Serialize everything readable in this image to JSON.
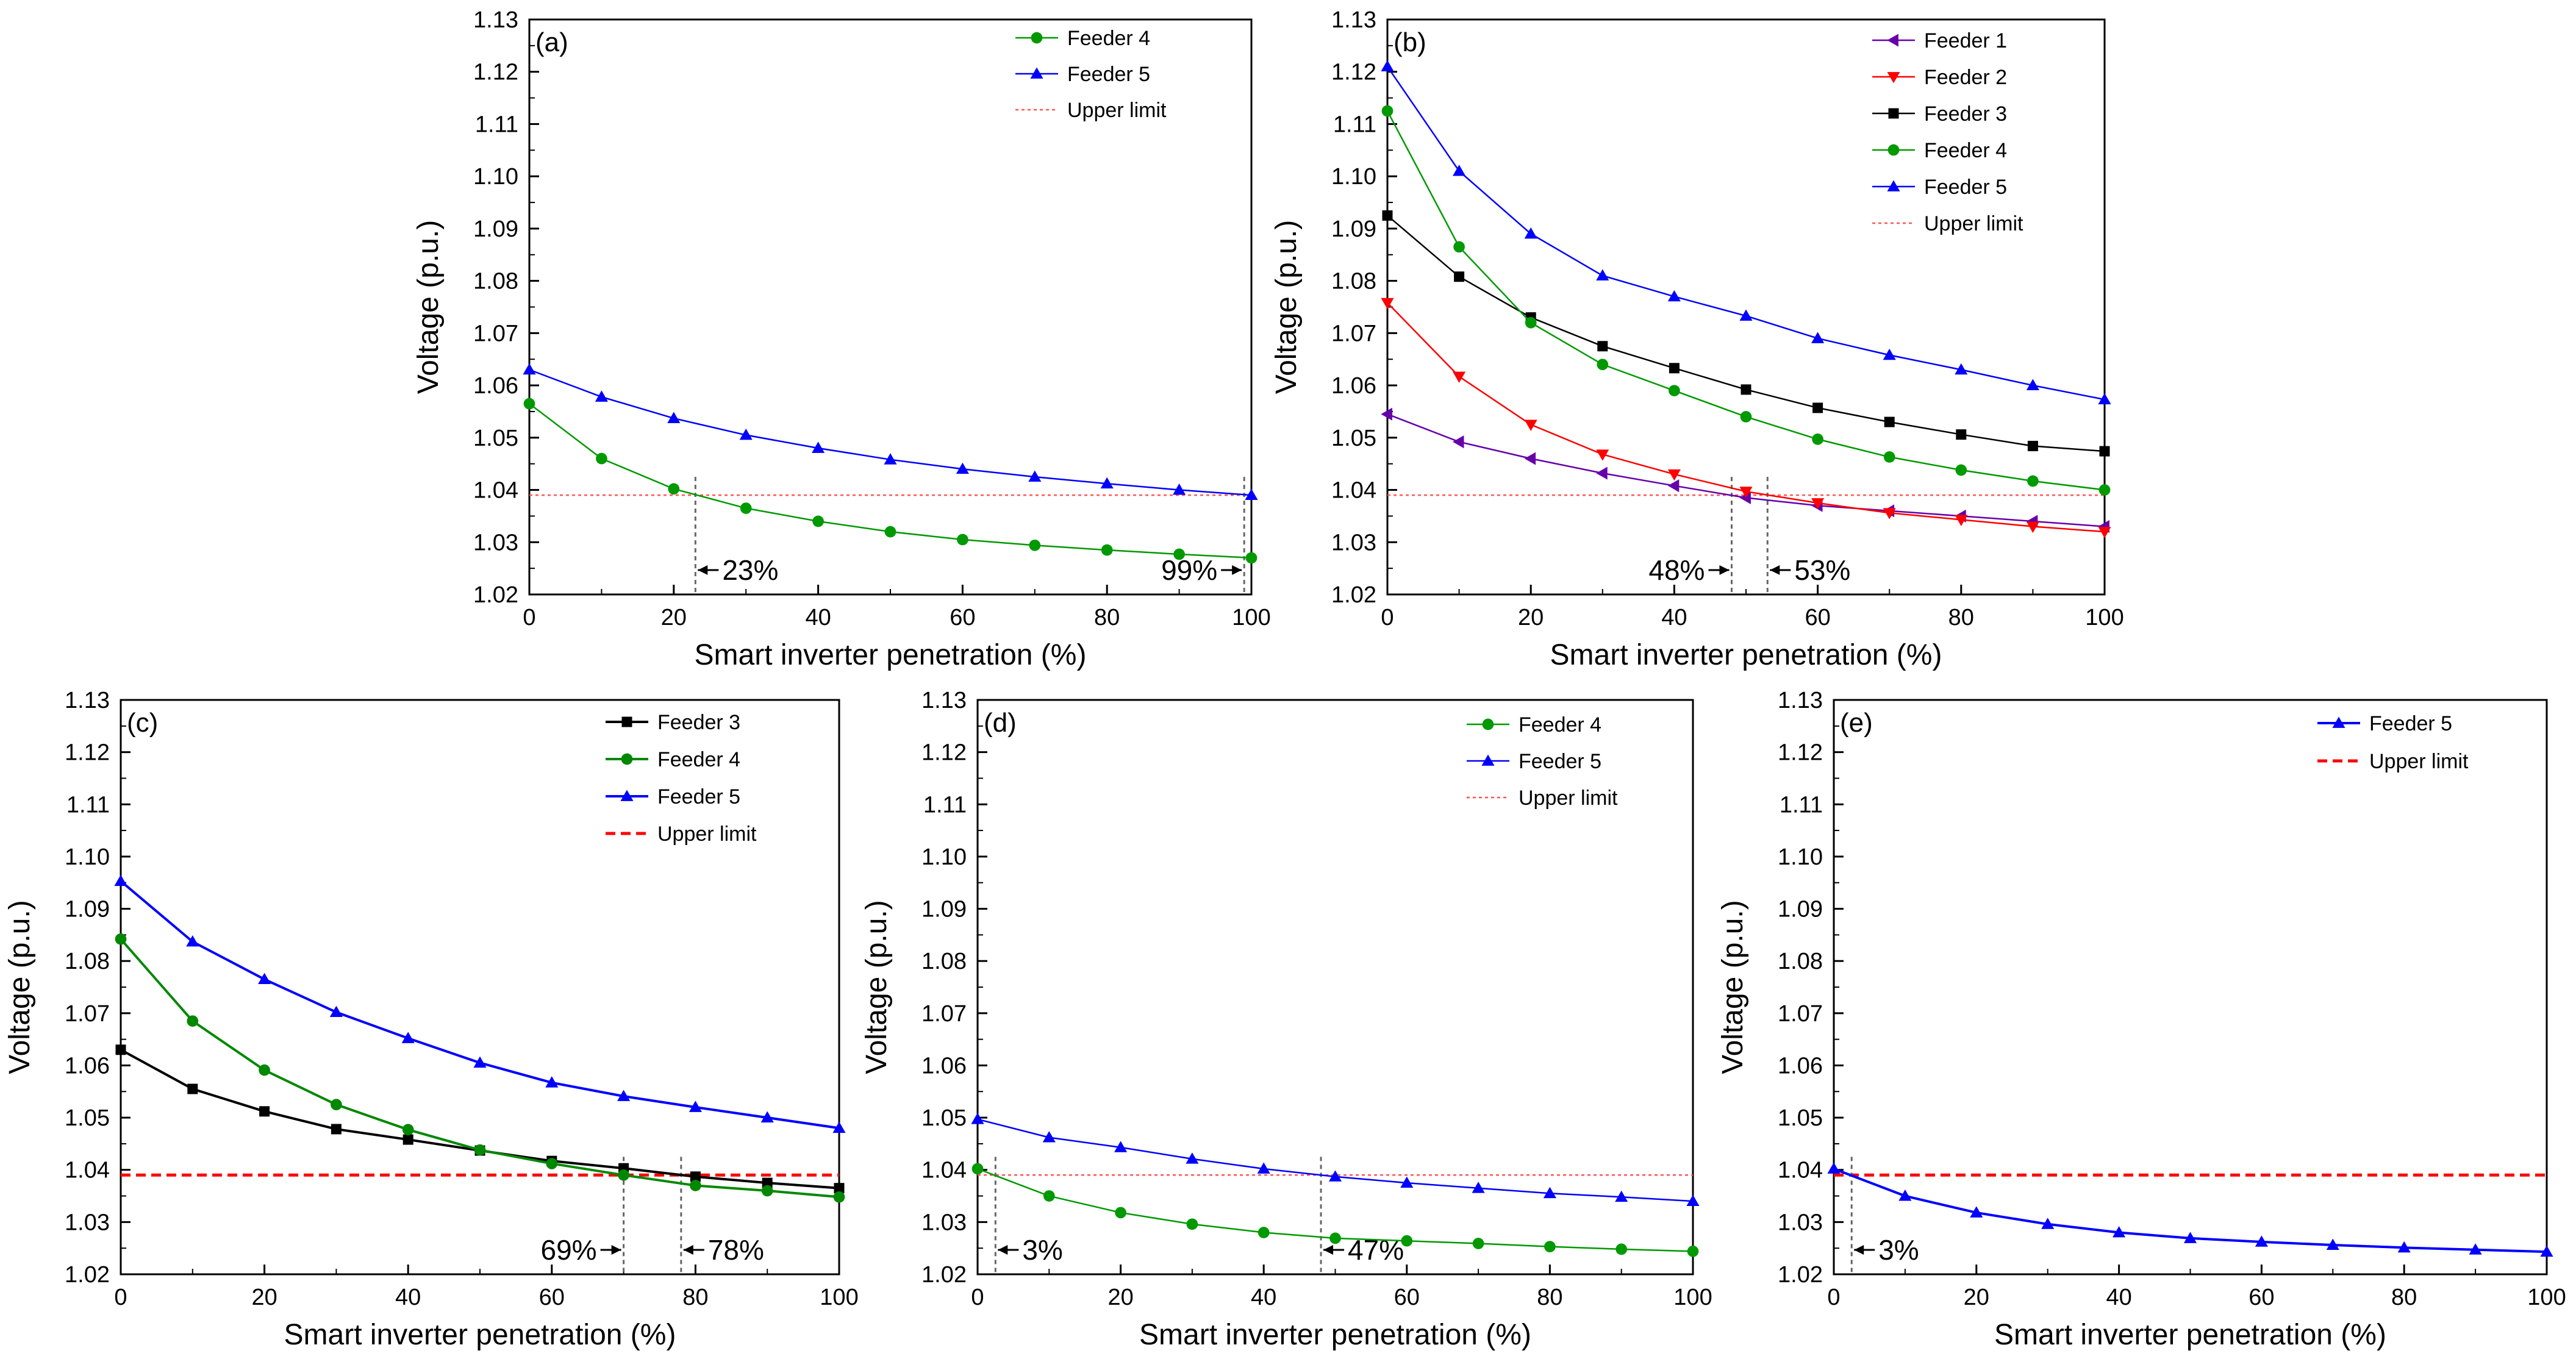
{
  "chart_data": [
    {
      "panel": "(a)",
      "type": "line",
      "xlabel": "Smart inverter penetration (%)",
      "ylabel": "Voltage (p.u.)",
      "xlim": [
        0,
        100
      ],
      "ylim": [
        1.02,
        1.13
      ],
      "xticks": [
        "0",
        "20",
        "40",
        "60",
        "80",
        "100"
      ],
      "yticks": [
        "1.02",
        "1.03",
        "1.04",
        "1.05",
        "1.06",
        "1.07",
        "1.08",
        "1.09",
        "1.10",
        "1.11",
        "1.12",
        "1.13"
      ],
      "x": [
        0,
        10,
        20,
        30,
        40,
        50,
        60,
        70,
        80,
        90,
        100
      ],
      "legend_position": "top-right",
      "series": [
        {
          "name": "Feeder 4",
          "color": "#009900",
          "marker": "circle",
          "values": [
            1.0565,
            1.046,
            1.0402,
            1.0365,
            1.034,
            1.032,
            1.0305,
            1.0294,
            1.0285,
            1.0277,
            1.027
          ]
        },
        {
          "name": "Feeder 5",
          "color": "#0000ff",
          "marker": "triangle-up",
          "values": [
            1.063,
            1.0578,
            1.0537,
            1.0505,
            1.048,
            1.0458,
            1.044,
            1.0425,
            1.0412,
            1.04,
            1.039
          ]
        }
      ],
      "upper_limit": {
        "name": "Upper limit",
        "value": 1.039,
        "color": "#ff5555",
        "style": "dotted"
      },
      "annotations": [
        {
          "text": "23%",
          "x": 23,
          "side": "right"
        },
        {
          "text": "99%",
          "x": 99,
          "side": "left"
        }
      ]
    },
    {
      "panel": "(b)",
      "type": "line",
      "xlabel": "Smart inverter penetration (%)",
      "ylabel": "Voltage (p.u.)",
      "xlim": [
        0,
        100
      ],
      "ylim": [
        1.02,
        1.13
      ],
      "xticks": [
        "0",
        "20",
        "40",
        "60",
        "80",
        "100"
      ],
      "yticks": [
        "1.02",
        "1.03",
        "1.04",
        "1.05",
        "1.06",
        "1.07",
        "1.08",
        "1.09",
        "1.10",
        "1.11",
        "1.12",
        "1.13"
      ],
      "x": [
        0,
        10,
        20,
        30,
        40,
        50,
        60,
        70,
        80,
        90,
        100
      ],
      "legend_position": "top-right",
      "series": [
        {
          "name": "Feeder 1",
          "color": "#6600aa",
          "marker": "triangle-left",
          "values": [
            1.0545,
            1.0492,
            1.046,
            1.0432,
            1.0408,
            1.0385,
            1.037,
            1.036,
            1.035,
            1.034,
            1.033
          ]
        },
        {
          "name": "Feeder 2",
          "color": "#ff0000",
          "marker": "triangle-down",
          "values": [
            1.0758,
            1.0617,
            1.0525,
            1.0468,
            1.043,
            1.0397,
            1.0375,
            1.0356,
            1.0343,
            1.033,
            1.032
          ]
        },
        {
          "name": "Feeder 3",
          "color": "#000000",
          "marker": "square",
          "values": [
            1.0925,
            1.0808,
            1.073,
            1.0675,
            1.0633,
            1.0592,
            1.0557,
            1.053,
            1.0506,
            1.0484,
            1.0474
          ]
        },
        {
          "name": "Feeder 4",
          "color": "#009900",
          "marker": "circle",
          "values": [
            1.1125,
            1.0865,
            1.072,
            1.064,
            1.059,
            1.054,
            1.0497,
            1.0463,
            1.0438,
            1.0417,
            1.04
          ]
        },
        {
          "name": "Feeder 5",
          "color": "#0000ff",
          "marker": "triangle-up",
          "values": [
            1.121,
            1.101,
            1.089,
            1.081,
            1.077,
            1.0733,
            1.069,
            1.0658,
            1.063,
            1.06,
            1.0573
          ]
        }
      ],
      "upper_limit": {
        "name": "Upper limit",
        "value": 1.039,
        "color": "#ff5555",
        "style": "dotted"
      },
      "annotations": [
        {
          "text": "48%",
          "x": 48,
          "side": "left"
        },
        {
          "text": "53%",
          "x": 53,
          "side": "right"
        }
      ]
    },
    {
      "panel": "(c)",
      "type": "line",
      "xlabel": "Smart inverter penetration (%)",
      "ylabel": "Voltage (p.u.)",
      "xlim": [
        0,
        100
      ],
      "ylim": [
        1.02,
        1.13
      ],
      "xticks": [
        "0",
        "20",
        "40",
        "60",
        "80",
        "100"
      ],
      "yticks": [
        "1.02",
        "1.03",
        "1.04",
        "1.05",
        "1.06",
        "1.07",
        "1.08",
        "1.09",
        "1.10",
        "1.11",
        "1.12",
        "1.13"
      ],
      "x": [
        0,
        10,
        20,
        30,
        40,
        50,
        60,
        70,
        80,
        90,
        100
      ],
      "legend_position": "top-right",
      "series": [
        {
          "name": "Feeder 3",
          "color": "#000000",
          "marker": "square",
          "values": [
            1.063,
            1.0555,
            1.0512,
            1.0478,
            1.0458,
            1.0437,
            1.0417,
            1.0403,
            1.0387,
            1.0375,
            1.0365
          ]
        },
        {
          "name": "Feeder 4",
          "color": "#008800",
          "marker": "circle",
          "values": [
            1.0842,
            1.0685,
            1.0591,
            1.0525,
            1.0477,
            1.0438,
            1.0412,
            1.039,
            1.037,
            1.036,
            1.0348
          ]
        },
        {
          "name": "Feeder 5",
          "color": "#0000ff",
          "marker": "triangle-up",
          "values": [
            1.0953,
            1.0837,
            1.0765,
            1.0702,
            1.0652,
            1.0605,
            1.0567,
            1.0541,
            1.052,
            1.05,
            1.048
          ]
        }
      ],
      "upper_limit": {
        "name": "Upper limit",
        "value": 1.039,
        "color": "#ff0000",
        "style": "dashed"
      },
      "annotations": [
        {
          "text": "69%",
          "x": 70,
          "side": "left"
        },
        {
          "text": "78%",
          "x": 78,
          "side": "right"
        }
      ]
    },
    {
      "panel": "(d)",
      "type": "line",
      "xlabel": "Smart inverter penetration (%)",
      "ylabel": "Voltage (p.u.)",
      "xlim": [
        0,
        100
      ],
      "ylim": [
        1.02,
        1.13
      ],
      "xticks": [
        "0",
        "20",
        "40",
        "60",
        "80",
        "100"
      ],
      "yticks": [
        "1.02",
        "1.03",
        "1.04",
        "1.05",
        "1.06",
        "1.07",
        "1.08",
        "1.09",
        "1.10",
        "1.11",
        "1.12",
        "1.13"
      ],
      "x": [
        0,
        10,
        20,
        30,
        40,
        50,
        60,
        70,
        80,
        90,
        100
      ],
      "legend_position": "top-right",
      "series": [
        {
          "name": "Feeder 4",
          "color": "#009900",
          "marker": "circle",
          "values": [
            1.0402,
            1.035,
            1.0318,
            1.0296,
            1.028,
            1.0269,
            1.0264,
            1.0259,
            1.0253,
            1.0248,
            1.0244
          ]
        },
        {
          "name": "Feeder 5",
          "color": "#0000ff",
          "marker": "triangle-up",
          "values": [
            1.0497,
            1.0462,
            1.0443,
            1.0421,
            1.0402,
            1.0387,
            1.0375,
            1.0365,
            1.0355,
            1.0348,
            1.034
          ]
        }
      ],
      "upper_limit": {
        "name": "Upper limit",
        "value": 1.039,
        "color": "#ff5555",
        "style": "dotted"
      },
      "annotations": [
        {
          "text": "3%",
          "x": 2.5,
          "side": "right"
        },
        {
          "text": "47%",
          "x": 48,
          "side": "right"
        }
      ]
    },
    {
      "panel": "(e)",
      "type": "line",
      "xlabel": "Smart inverter penetration (%)",
      "ylabel": "Voltage (p.u.)",
      "xlim": [
        0,
        100
      ],
      "ylim": [
        1.02,
        1.13
      ],
      "xticks": [
        "0",
        "20",
        "40",
        "60",
        "80",
        "100"
      ],
      "yticks": [
        "1.02",
        "1.03",
        "1.04",
        "1.05",
        "1.06",
        "1.07",
        "1.08",
        "1.09",
        "1.10",
        "1.11",
        "1.12",
        "1.13"
      ],
      "x": [
        0,
        10,
        20,
        30,
        40,
        50,
        60,
        70,
        80,
        90,
        100
      ],
      "legend_position": "top-right",
      "series": [
        {
          "name": "Feeder 5",
          "color": "#0000ff",
          "marker": "triangle-up",
          "values": [
            1.0402,
            1.035,
            1.0318,
            1.0296,
            1.028,
            1.0269,
            1.0262,
            1.0256,
            1.0251,
            1.0247,
            1.0243
          ]
        }
      ],
      "upper_limit": {
        "name": "Upper limit",
        "value": 1.039,
        "color": "#ff0000",
        "style": "dashed"
      },
      "annotations": [
        {
          "text": "3%",
          "x": 2.5,
          "side": "right"
        }
      ]
    }
  ]
}
